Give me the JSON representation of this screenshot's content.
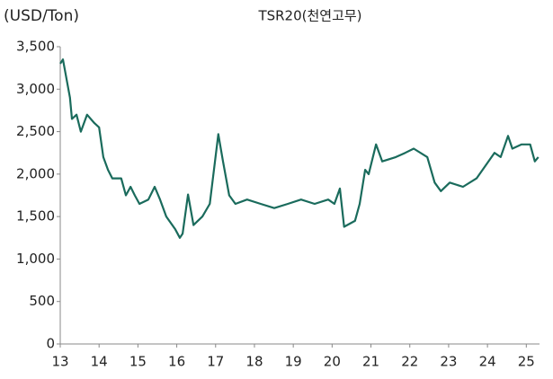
{
  "chart_data": {
    "type": "line",
    "title": "TSR20(천연고무)",
    "y_label": "(USD/Ton)",
    "x": [
      13.0,
      13.07,
      13.25,
      13.3,
      13.42,
      13.53,
      13.69,
      13.88,
      14.0,
      14.11,
      14.23,
      14.34,
      14.57,
      14.69,
      14.81,
      14.92,
      15.04,
      15.27,
      15.43,
      15.57,
      15.73,
      15.96,
      16.08,
      16.15,
      16.29,
      16.43,
      16.66,
      16.85,
      17.07,
      17.19,
      17.35,
      17.51,
      17.81,
      18.16,
      18.51,
      18.86,
      19.2,
      19.55,
      19.9,
      20.06,
      20.2,
      20.31,
      20.59,
      20.71,
      20.85,
      20.94,
      21.13,
      21.29,
      21.64,
      21.88,
      22.1,
      22.45,
      22.64,
      22.8,
      23.03,
      23.37,
      23.72,
      23.95,
      24.18,
      24.34,
      24.53,
      24.64,
      24.88,
      25.1,
      25.22,
      25.31
    ],
    "series": [
      {
        "name": "TSR20",
        "color": "#1a6b5c",
        "values": [
          3300,
          3350,
          2900,
          2650,
          2700,
          2500,
          2700,
          2600,
          2550,
          2200,
          2050,
          1950,
          1950,
          1750,
          1850,
          1750,
          1650,
          1700,
          1850,
          1700,
          1500,
          1350,
          1250,
          1300,
          1760,
          1400,
          1500,
          1650,
          2470,
          2150,
          1750,
          1650,
          1700,
          1650,
          1600,
          1650,
          1700,
          1650,
          1700,
          1650,
          1830,
          1380,
          1450,
          1650,
          2050,
          2000,
          2350,
          2150,
          2200,
          2250,
          2300,
          2200,
          1900,
          1800,
          1900,
          1850,
          1950,
          2100,
          2250,
          2200,
          2450,
          2300,
          2350,
          2350,
          2150,
          2200
        ]
      }
    ],
    "xlim": [
      13,
      25.34
    ],
    "xticks": [
      13,
      14,
      15,
      16,
      17,
      18,
      19,
      20,
      21,
      22,
      23,
      24,
      25
    ],
    "ylim": [
      0,
      3500
    ],
    "yticks": [
      0,
      500,
      {
        "value": 1000,
        "label": "1,000"
      },
      {
        "value": 1500,
        "label": "1,500"
      },
      {
        "value": 2000,
        "label": "2,000"
      },
      {
        "value": 2500,
        "label": "2,500"
      },
      {
        "value": 3000,
        "label": "3,000"
      },
      {
        "value": 3500,
        "label": "3,500"
      }
    ],
    "grid": false
  }
}
